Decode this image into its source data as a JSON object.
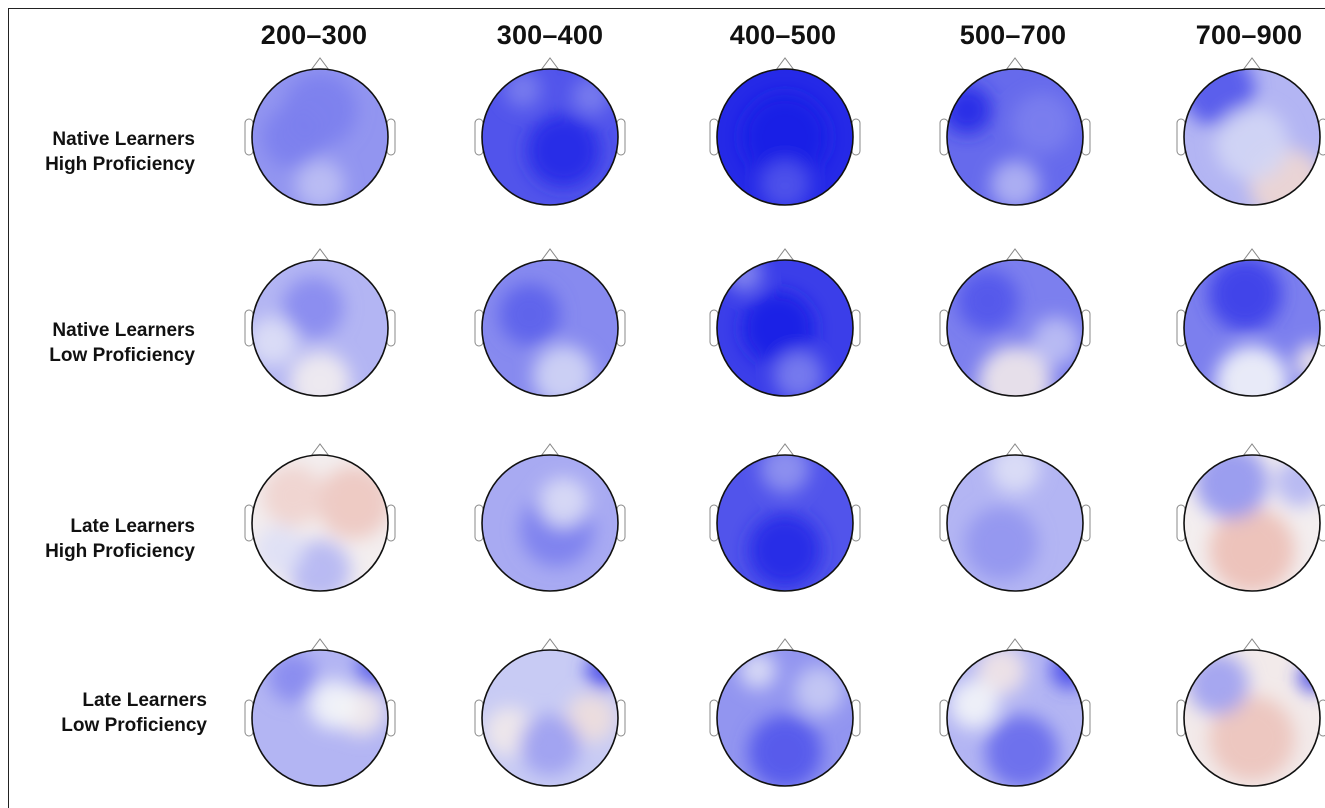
{
  "columns": [
    "200–300",
    "300–400",
    "400–500",
    "500–700",
    "700–900"
  ],
  "rows": [
    {
      "line1": "Native Learners",
      "line2": "High Proficiency"
    },
    {
      "line1": "Native Learners",
      "line2": "Low Proficiency"
    },
    {
      "line1": "Late Learners",
      "line2": "High Proficiency"
    },
    {
      "line1": "Late Learners",
      "line2": "Low Proficiency"
    }
  ],
  "colors": {
    "negative": "#1a1ee6",
    "neutral": "#f4f6f8",
    "positive": "#e8a89a",
    "outline": "#111111"
  },
  "maps": [
    [
      {
        "base": -0.45,
        "blobs": [
          [
            0.5,
            0.3,
            0.3,
            -0.1
          ],
          [
            0.5,
            0.85,
            0.2,
            0.2
          ],
          [
            0.3,
            0.5,
            0.25,
            -0.1
          ]
        ]
      },
      {
        "base": -0.75,
        "blobs": [
          [
            0.6,
            0.6,
            0.3,
            -0.2
          ],
          [
            0.3,
            0.15,
            0.15,
            0.2
          ],
          [
            0.8,
            0.2,
            0.15,
            0.2
          ]
        ]
      },
      {
        "base": -0.95,
        "blobs": [
          [
            0.5,
            0.5,
            0.35,
            -0.05
          ],
          [
            0.5,
            0.85,
            0.2,
            0.2
          ]
        ]
      },
      {
        "base": -0.65,
        "blobs": [
          [
            0.15,
            0.3,
            0.2,
            -0.3
          ],
          [
            0.5,
            0.85,
            0.2,
            0.35
          ],
          [
            0.7,
            0.4,
            0.25,
            0.1
          ]
        ]
      },
      {
        "base": -0.3,
        "blobs": [
          [
            0.25,
            0.15,
            0.3,
            -0.45
          ],
          [
            0.75,
            0.85,
            0.3,
            0.7
          ],
          [
            0.5,
            0.55,
            0.3,
            0.15
          ]
        ]
      }
    ],
    [
      {
        "base": -0.3,
        "blobs": [
          [
            0.45,
            0.35,
            0.25,
            -0.2
          ],
          [
            0.5,
            0.9,
            0.25,
            0.4
          ],
          [
            0.15,
            0.6,
            0.2,
            0.2
          ]
        ]
      },
      {
        "base": -0.5,
        "blobs": [
          [
            0.35,
            0.4,
            0.25,
            -0.2
          ],
          [
            0.6,
            0.85,
            0.25,
            0.35
          ]
        ]
      },
      {
        "base": -0.85,
        "blobs": [
          [
            0.45,
            0.5,
            0.3,
            -0.15
          ],
          [
            0.2,
            0.1,
            0.15,
            0.35
          ],
          [
            0.6,
            0.85,
            0.2,
            0.3
          ]
        ]
      },
      {
        "base": -0.55,
        "blobs": [
          [
            0.3,
            0.3,
            0.25,
            -0.2
          ],
          [
            0.5,
            0.9,
            0.3,
            0.7
          ],
          [
            0.8,
            0.6,
            0.2,
            0.3
          ]
        ]
      },
      {
        "base": -0.55,
        "blobs": [
          [
            0.45,
            0.25,
            0.3,
            -0.3
          ],
          [
            0.5,
            0.9,
            0.3,
            0.55
          ],
          [
            0.95,
            0.75,
            0.15,
            0.7
          ]
        ]
      }
    ],
    [
      {
        "base": 0.1,
        "blobs": [
          [
            0.75,
            0.35,
            0.3,
            0.5
          ],
          [
            0.3,
            0.3,
            0.25,
            0.35
          ],
          [
            0.5,
            0.85,
            0.25,
            -0.4
          ],
          [
            0.2,
            0.7,
            0.2,
            -0.2
          ]
        ]
      },
      {
        "base": -0.35,
        "blobs": [
          [
            0.55,
            0.55,
            0.3,
            -0.2
          ],
          [
            0.6,
            0.35,
            0.2,
            0.25
          ]
        ]
      },
      {
        "base": -0.75,
        "blobs": [
          [
            0.5,
            0.7,
            0.3,
            -0.2
          ],
          [
            0.5,
            0.1,
            0.2,
            0.3
          ]
        ]
      },
      {
        "base": -0.3,
        "blobs": [
          [
            0.4,
            0.65,
            0.3,
            -0.15
          ],
          [
            0.5,
            0.1,
            0.2,
            0.2
          ]
        ]
      },
      {
        "base": 0.1,
        "blobs": [
          [
            0.5,
            0.7,
            0.35,
            0.6
          ],
          [
            0.35,
            0.2,
            0.3,
            -0.55
          ],
          [
            0.85,
            0.2,
            0.2,
            -0.4
          ]
        ]
      }
    ],
    [
      {
        "base": -0.3,
        "blobs": [
          [
            0.8,
            0.45,
            0.2,
            0.45
          ],
          [
            0.6,
            0.4,
            0.2,
            0.3
          ],
          [
            0.3,
            0.2,
            0.2,
            -0.2
          ],
          [
            0.9,
            0.15,
            0.15,
            -0.4
          ]
        ]
      },
      {
        "base": -0.2,
        "blobs": [
          [
            0.8,
            0.5,
            0.2,
            0.5
          ],
          [
            0.2,
            0.6,
            0.2,
            0.35
          ],
          [
            0.9,
            0.15,
            0.15,
            -0.6
          ],
          [
            0.5,
            0.7,
            0.25,
            -0.2
          ]
        ]
      },
      {
        "base": -0.45,
        "blobs": [
          [
            0.5,
            0.75,
            0.3,
            -0.3
          ],
          [
            0.3,
            0.15,
            0.15,
            0.35
          ],
          [
            0.75,
            0.3,
            0.2,
            0.25
          ]
        ]
      },
      {
        "base": -0.3,
        "blobs": [
          [
            0.4,
            0.15,
            0.2,
            0.5
          ],
          [
            0.55,
            0.75,
            0.3,
            -0.35
          ],
          [
            0.9,
            0.15,
            0.15,
            -0.5
          ],
          [
            0.2,
            0.4,
            0.2,
            0.3
          ]
        ]
      },
      {
        "base": 0.15,
        "blobs": [
          [
            0.5,
            0.65,
            0.35,
            0.5
          ],
          [
            0.25,
            0.25,
            0.25,
            -0.55
          ],
          [
            0.95,
            0.2,
            0.12,
            -1.0
          ]
        ]
      }
    ]
  ]
}
